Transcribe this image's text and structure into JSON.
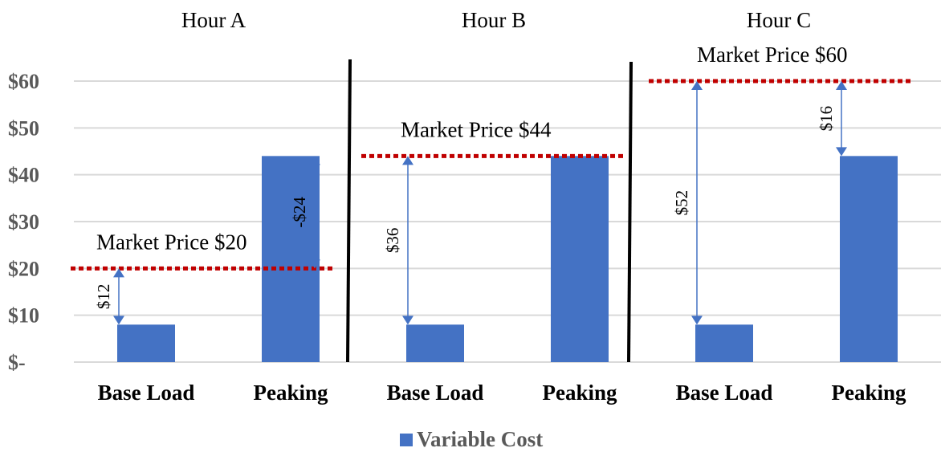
{
  "chart_data": {
    "type": "bar",
    "categories": [
      "Base Load",
      "Peaking",
      "Base Load",
      "Peaking",
      "Base Load",
      "Peaking"
    ],
    "series": [
      {
        "name": "Variable Cost",
        "values": [
          8,
          44,
          8,
          44,
          8,
          44
        ],
        "color": "#4472C4"
      }
    ],
    "groups": [
      {
        "label": "Hour A",
        "market_price": 20,
        "market_price_label": "Market Price $20",
        "differences": [
          {
            "category_index": 0,
            "label": "$12",
            "from": 8,
            "to": 20
          },
          {
            "category_index": 1,
            "label": "-$24",
            "from": 20,
            "to": 44
          }
        ]
      },
      {
        "label": "Hour B",
        "market_price": 44,
        "market_price_label": "Market Price $44",
        "differences": [
          {
            "category_index": 2,
            "label": "$36",
            "from": 8,
            "to": 44
          }
        ]
      },
      {
        "label": "Hour C",
        "market_price": 60,
        "market_price_label": "Market Price $60",
        "differences": [
          {
            "category_index": 4,
            "label": "$52",
            "from": 8,
            "to": 60
          },
          {
            "category_index": 5,
            "label": "$16",
            "from": 44,
            "to": 60
          }
        ]
      }
    ],
    "y_ticks": [
      "$-",
      "$10",
      "$20",
      "$30",
      "$40",
      "$50",
      "$60"
    ],
    "ylim": [
      0,
      60
    ],
    "grid": true,
    "legend_position": "bottom",
    "colors": {
      "bar": "#4472C4",
      "market_line": "#C00000",
      "arrow": "#4472C4",
      "divider": "#000000",
      "grid": "#D9D9D9"
    }
  }
}
